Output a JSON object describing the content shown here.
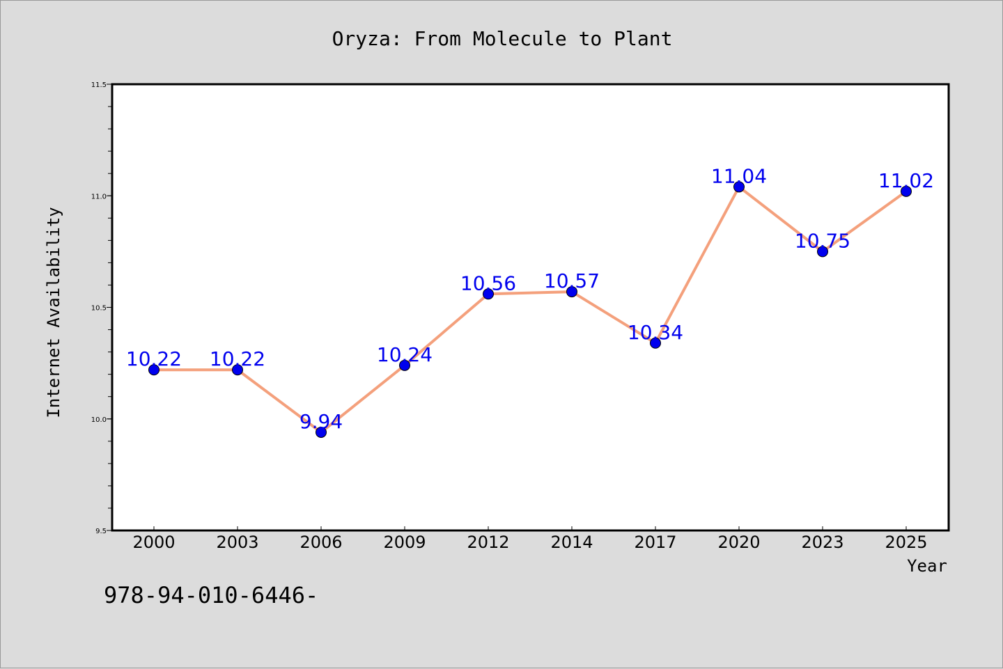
{
  "chart_data": {
    "type": "line",
    "title": "Oryza: From Molecule to Plant",
    "xlabel": "Year",
    "ylabel": "Internet Availability",
    "categories": [
      "2000",
      "2003",
      "2006",
      "2009",
      "2012",
      "2014",
      "2017",
      "2020",
      "2023",
      "2025"
    ],
    "series": [
      {
        "values": [
          10.22,
          10.22,
          9.94,
          10.24,
          10.56,
          10.57,
          10.34,
          11.04,
          10.75,
          11.02
        ],
        "data_labels": [
          "10.22",
          "10.22",
          "9.94",
          "10.24",
          "10.56",
          "10.57",
          "10.34",
          "11.04",
          "10.75",
          "11.02"
        ]
      }
    ],
    "ylim": [
      9.5,
      11.5
    ],
    "y_ticks": [
      "9.5",
      "10.0",
      "10.5",
      "11.0",
      "11.5"
    ],
    "grid": false,
    "legend": "none",
    "line_color": "#f4a07c",
    "marker_color": "#0000ee",
    "label_color": "#0000ee",
    "background_color": "#dcdcdc",
    "plot_background_color": "#ffffff"
  },
  "footer": {
    "isbn_text": "978-94-010-6446-"
  }
}
